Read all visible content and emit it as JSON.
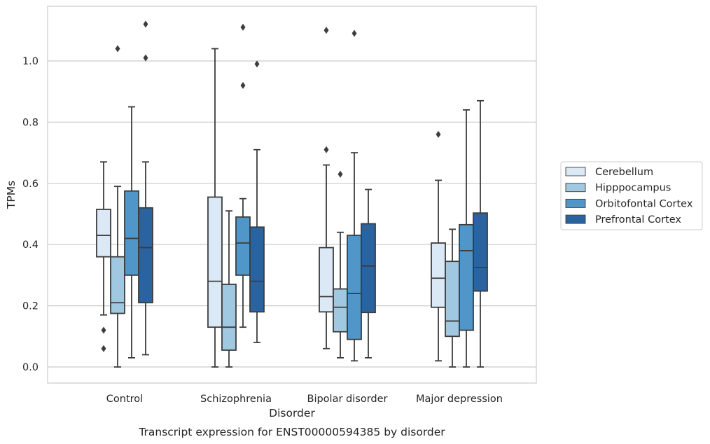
{
  "chart_data": {
    "type": "boxplot",
    "title": "",
    "caption": "Transcript expression for ENST00000594385 by disorder",
    "xlabel": "Disorder",
    "ylabel": "TPMs",
    "ylim": [
      -0.055,
      1.185
    ],
    "yticks": [
      0.0,
      0.2,
      0.4,
      0.6,
      0.8,
      1.0
    ],
    "ytick_labels": [
      "0.0",
      "0.2",
      "0.4",
      "0.6",
      "0.8",
      "1.0"
    ],
    "grid": "horizontal",
    "legend_position": "right",
    "categories": [
      "Control",
      "Schizophrenia",
      "Bipolar disorder",
      "Major depression"
    ],
    "series": [
      {
        "name": "Cerebellum",
        "color": "#dbe9f6",
        "boxes": [
          {
            "whisker_low": 0.17,
            "q1": 0.36,
            "median": 0.43,
            "q3": 0.515,
            "whisker_high": 0.67,
            "outliers": [
              0.12,
              0.06
            ]
          },
          {
            "whisker_low": 0.0,
            "q1": 0.13,
            "median": 0.28,
            "q3": 0.555,
            "whisker_high": 1.04,
            "outliers": []
          },
          {
            "whisker_low": 0.06,
            "q1": 0.18,
            "median": 0.23,
            "q3": 0.39,
            "whisker_high": 0.66,
            "outliers": [
              0.71,
              1.1
            ]
          },
          {
            "whisker_low": 0.02,
            "q1": 0.195,
            "median": 0.29,
            "q3": 0.405,
            "whisker_high": 0.61,
            "outliers": [
              0.76
            ]
          }
        ]
      },
      {
        "name": "Hipppocampus",
        "color": "#a0c8e0",
        "boxes": [
          {
            "whisker_low": 0.0,
            "q1": 0.175,
            "median": 0.21,
            "q3": 0.36,
            "whisker_high": 0.59,
            "outliers": [
              1.04
            ]
          },
          {
            "whisker_low": 0.0,
            "q1": 0.055,
            "median": 0.13,
            "q3": 0.27,
            "whisker_high": 0.51,
            "outliers": []
          },
          {
            "whisker_low": 0.03,
            "q1": 0.115,
            "median": 0.195,
            "q3": 0.255,
            "whisker_high": 0.44,
            "outliers": [
              0.63
            ]
          },
          {
            "whisker_low": 0.0,
            "q1": 0.1,
            "median": 0.15,
            "q3": 0.345,
            "whisker_high": 0.45,
            "outliers": []
          }
        ]
      },
      {
        "name": "Orbitofontal Cortex",
        "color": "#5096c9",
        "boxes": [
          {
            "whisker_low": 0.03,
            "q1": 0.3,
            "median": 0.42,
            "q3": 0.575,
            "whisker_high": 0.85,
            "outliers": []
          },
          {
            "whisker_low": 0.13,
            "q1": 0.3,
            "median": 0.405,
            "q3": 0.49,
            "whisker_high": 0.55,
            "outliers": [
              0.92,
              1.11
            ]
          },
          {
            "whisker_low": 0.02,
            "q1": 0.09,
            "median": 0.24,
            "q3": 0.43,
            "whisker_high": 0.7,
            "outliers": [
              1.09
            ]
          },
          {
            "whisker_low": 0.0,
            "q1": 0.12,
            "median": 0.38,
            "q3": 0.465,
            "whisker_high": 0.84,
            "outliers": []
          }
        ]
      },
      {
        "name": "Prefrontal Cortex",
        "color": "#2a64a0",
        "boxes": [
          {
            "whisker_low": 0.04,
            "q1": 0.21,
            "median": 0.39,
            "q3": 0.52,
            "whisker_high": 0.67,
            "outliers": [
              1.01,
              1.12
            ]
          },
          {
            "whisker_low": 0.08,
            "q1": 0.18,
            "median": 0.28,
            "q3": 0.457,
            "whisker_high": 0.71,
            "outliers": [
              0.99
            ]
          },
          {
            "whisker_low": 0.03,
            "q1": 0.178,
            "median": 0.33,
            "q3": 0.468,
            "whisker_high": 0.58,
            "outliers": []
          },
          {
            "whisker_low": 0.0,
            "q1": 0.248,
            "median": 0.325,
            "q3": 0.503,
            "whisker_high": 0.87,
            "outliers": []
          }
        ]
      }
    ]
  }
}
